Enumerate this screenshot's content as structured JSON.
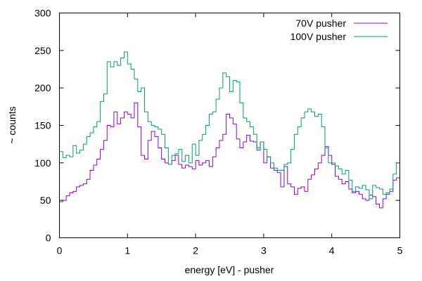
{
  "chart_data": {
    "type": "line",
    "style": "steps",
    "title": "",
    "xlabel": "energy [eV] - pusher",
    "ylabel": "~ counts",
    "xlim": [
      0,
      5
    ],
    "ylim": [
      0,
      300
    ],
    "xticks": [
      "0",
      "1",
      "2",
      "3",
      "4",
      "5"
    ],
    "yticks": [
      "0",
      "50",
      "100",
      "150",
      "200",
      "250",
      "300"
    ],
    "grid": false,
    "legend_position": "top-right",
    "series": [
      {
        "name": "70V pusher",
        "color": "#9400d3",
        "x": [
          0,
          0.05,
          0.1,
          0.15,
          0.2,
          0.25,
          0.3,
          0.35,
          0.4,
          0.45,
          0.5,
          0.55,
          0.6,
          0.65,
          0.7,
          0.75,
          0.8,
          0.85,
          0.9,
          0.95,
          1,
          1.05,
          1.1,
          1.15,
          1.2,
          1.25,
          1.3,
          1.35,
          1.4,
          1.45,
          1.5,
          1.55,
          1.6,
          1.65,
          1.7,
          1.75,
          1.8,
          1.85,
          1.9,
          1.95,
          2,
          2.05,
          2.1,
          2.15,
          2.2,
          2.25,
          2.3,
          2.35,
          2.4,
          2.45,
          2.5,
          2.55,
          2.6,
          2.65,
          2.7,
          2.75,
          2.8,
          2.85,
          2.9,
          2.95,
          3,
          3.05,
          3.1,
          3.15,
          3.2,
          3.25,
          3.3,
          3.35,
          3.4,
          3.45,
          3.5,
          3.55,
          3.6,
          3.65,
          3.7,
          3.75,
          3.8,
          3.85,
          3.9,
          3.95,
          4,
          4.05,
          4.1,
          4.15,
          4.2,
          4.25,
          4.3,
          4.35,
          4.4,
          4.45,
          4.5,
          4.55,
          4.6,
          4.65,
          4.7,
          4.75,
          4.8,
          4.85,
          4.9,
          4.95
        ],
        "y": [
          48,
          50,
          56,
          60,
          62,
          68,
          70,
          72,
          78,
          90,
          97,
          105,
          118,
          130,
          150,
          148,
          168,
          152,
          160,
          168,
          165,
          160,
          180,
          148,
          110,
          105,
          130,
          142,
          135,
          120,
          105,
          100,
          98,
          103,
          110,
          98,
          93,
          97,
          95,
          92,
          103,
          97,
          100,
          103,
          95,
          108,
          120,
          130,
          138,
          165,
          160,
          152,
          132,
          120,
          128,
          137,
          129,
          128,
          117,
          128,
          100,
          108,
          93,
          90,
          87,
          68,
          95,
          72,
          68,
          58,
          66,
          68,
          62,
          78,
          84,
          92,
          100,
          110,
          122,
          110,
          98,
          82,
          78,
          72,
          75,
          65,
          60,
          62,
          58,
          52,
          50,
          57,
          55,
          45,
          40,
          52,
          58,
          62,
          77,
          80
        ]
      },
      {
        "name": "100V pusher",
        "color": "#009e73",
        "x": [
          0,
          0.05,
          0.1,
          0.15,
          0.2,
          0.25,
          0.3,
          0.35,
          0.4,
          0.45,
          0.5,
          0.55,
          0.6,
          0.65,
          0.7,
          0.75,
          0.8,
          0.85,
          0.9,
          0.95,
          1,
          1.05,
          1.1,
          1.15,
          1.2,
          1.25,
          1.3,
          1.35,
          1.4,
          1.45,
          1.5,
          1.55,
          1.6,
          1.65,
          1.7,
          1.75,
          1.8,
          1.85,
          1.9,
          1.95,
          2,
          2.05,
          2.1,
          2.15,
          2.2,
          2.25,
          2.3,
          2.35,
          2.4,
          2.45,
          2.5,
          2.55,
          2.6,
          2.65,
          2.7,
          2.75,
          2.8,
          2.85,
          2.9,
          2.95,
          3,
          3.05,
          3.1,
          3.15,
          3.2,
          3.25,
          3.3,
          3.35,
          3.4,
          3.45,
          3.5,
          3.55,
          3.6,
          3.65,
          3.7,
          3.75,
          3.8,
          3.85,
          3.9,
          3.95,
          4,
          4.05,
          4.1,
          4.15,
          4.2,
          4.25,
          4.3,
          4.35,
          4.4,
          4.45,
          4.5,
          4.55,
          4.6,
          4.65,
          4.7,
          4.75,
          4.8,
          4.85,
          4.9,
          4.95
        ],
        "y": [
          115,
          107,
          110,
          108,
          123,
          113,
          117,
          125,
          135,
          140,
          148,
          155,
          182,
          192,
          235,
          228,
          235,
          230,
          240,
          248,
          232,
          225,
          212,
          195,
          200,
          168,
          155,
          150,
          148,
          145,
          138,
          120,
          98,
          110,
          112,
          118,
          102,
          110,
          100,
          125,
          110,
          130,
          138,
          150,
          165,
          168,
          185,
          200,
          220,
          215,
          195,
          210,
          208,
          180,
          160,
          155,
          148,
          138,
          120,
          128,
          118,
          108,
          100,
          93,
          90,
          90,
          98,
          100,
          118,
          138,
          148,
          160,
          168,
          172,
          168,
          162,
          165,
          148,
          120,
          100,
          100,
          96,
          92,
          85,
          90,
          77,
          62,
          68,
          66,
          70,
          64,
          52,
          70,
          67,
          65,
          58,
          60,
          65,
          85,
          100
        ]
      }
    ]
  }
}
